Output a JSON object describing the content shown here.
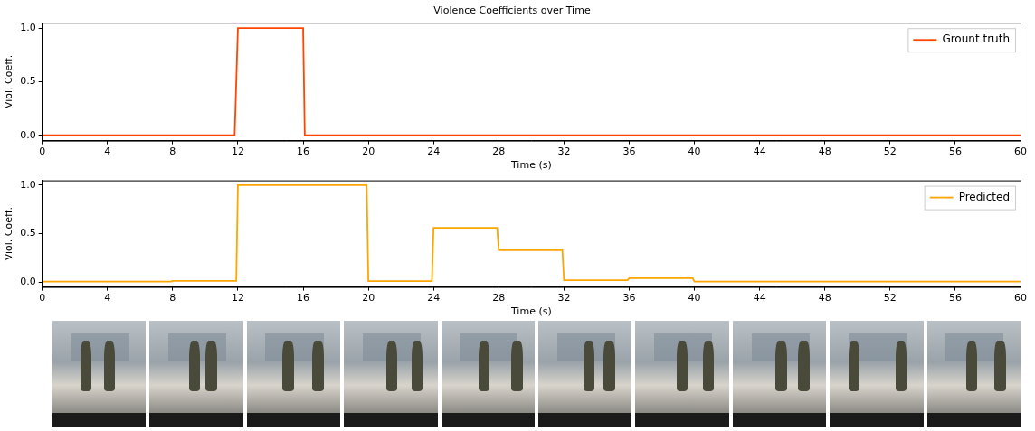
{
  "chart_data": [
    {
      "type": "line",
      "title": "Violence Coefficients over Time",
      "x_label": "Time (s)",
      "y_label": "Viol. Coeff.",
      "legend": "upper right",
      "grid": false,
      "xlim": [
        0,
        60
      ],
      "xticks": [
        0,
        4,
        8,
        12,
        16,
        20,
        24,
        28,
        32,
        36,
        40,
        44,
        48,
        52,
        56,
        60
      ],
      "ylim": [
        -0.05,
        1.05
      ],
      "yticks": [
        {
          "value": 0,
          "label": "0.0"
        },
        0.5,
        {
          "value": 1,
          "label": "1.0"
        }
      ],
      "series": [
        {
          "name": "Grount truth",
          "color": "#ff4500",
          "x": [
            0,
            11.8,
            12,
            16,
            16.1,
            60
          ],
          "values": [
            0,
            0,
            1,
            1,
            0,
            0
          ]
        }
      ]
    },
    {
      "type": "line",
      "x_label": "Time (s)",
      "y_label": "Viol. Coeff.",
      "legend": "upper right",
      "grid": false,
      "xlim": [
        0,
        60
      ],
      "xticks": [
        0,
        4,
        8,
        12,
        16,
        20,
        24,
        28,
        32,
        36,
        40,
        44,
        48,
        52,
        56,
        60
      ],
      "ylim": [
        -0.05,
        1.05
      ],
      "yticks": [
        {
          "value": 0,
          "label": "0.0"
        },
        0.5,
        {
          "value": 1,
          "label": "1.0"
        }
      ],
      "series": [
        {
          "name": "Predicted",
          "color": "#ffa500",
          "x": [
            0,
            7.9,
            8,
            11.9,
            12,
            16,
            19.9,
            20,
            23.9,
            24,
            27.9,
            28,
            31.9,
            32,
            35.9,
            36,
            39.9,
            40,
            60
          ],
          "values": [
            0.005,
            0.005,
            0.012,
            0.012,
            1,
            1,
            1,
            0.01,
            0.01,
            0.56,
            0.56,
            0.33,
            0.33,
            0.02,
            0.02,
            0.04,
            0.04,
            0.005,
            0.005
          ]
        }
      ]
    }
  ]
}
